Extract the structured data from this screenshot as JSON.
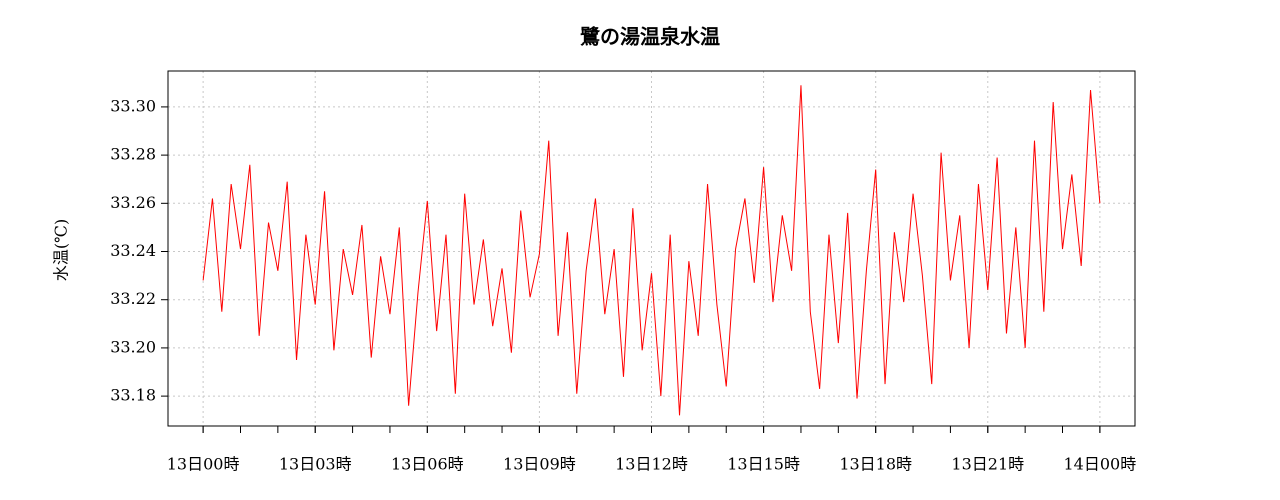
{
  "chart_data": {
    "type": "line",
    "title": "鷺の湯温泉水温",
    "y_label": "水温(℃)",
    "x": [
      0,
      0.25,
      0.5,
      0.75,
      1,
      1.25,
      1.5,
      1.75,
      2,
      2.25,
      2.5,
      2.75,
      3,
      3.25,
      3.5,
      3.75,
      4,
      4.25,
      4.5,
      4.75,
      5,
      5.25,
      5.5,
      5.75,
      6,
      6.25,
      6.5,
      6.75,
      7,
      7.25,
      7.5,
      7.75,
      8,
      8.25,
      8.5,
      8.75,
      9,
      9.25,
      9.5,
      9.75,
      10,
      10.25,
      10.5,
      10.75,
      11,
      11.25,
      11.5,
      11.75,
      12,
      12.25,
      12.5,
      12.75,
      13,
      13.25,
      13.5,
      13.75,
      14,
      14.25,
      14.5,
      14.75,
      15,
      15.25,
      15.5,
      15.75,
      16,
      16.25,
      16.5,
      16.75,
      17,
      17.25,
      17.5,
      17.75,
      18,
      18.25,
      18.5,
      18.75,
      19,
      19.25,
      19.5,
      19.75,
      20,
      20.25,
      20.5,
      20.75,
      21,
      21.25,
      21.5,
      21.75,
      22,
      22.25,
      22.5,
      22.75,
      23,
      23.25,
      23.5,
      23.75,
      24
    ],
    "series": [
      {
        "name": "水温",
        "color": "#ff0000",
        "values": [
          33.228,
          33.262,
          33.215,
          33.268,
          33.241,
          33.276,
          33.205,
          33.252,
          33.232,
          33.269,
          33.195,
          33.247,
          33.218,
          33.265,
          33.199,
          33.241,
          33.222,
          33.251,
          33.196,
          33.238,
          33.214,
          33.25,
          33.176,
          33.223,
          33.261,
          33.207,
          33.247,
          33.181,
          33.264,
          33.218,
          33.245,
          33.209,
          33.233,
          33.198,
          33.257,
          33.221,
          33.239,
          33.286,
          33.205,
          33.248,
          33.181,
          33.232,
          33.262,
          33.214,
          33.241,
          33.188,
          33.258,
          33.199,
          33.231,
          33.18,
          33.247,
          33.172,
          33.236,
          33.205,
          33.268,
          33.218,
          33.184,
          33.241,
          33.262,
          33.227,
          33.275,
          33.219,
          33.255,
          33.232,
          33.309,
          33.215,
          33.183,
          33.247,
          33.202,
          33.256,
          33.179,
          33.232,
          33.274,
          33.185,
          33.248,
          33.219,
          33.264,
          33.23,
          33.185,
          33.281,
          33.228,
          33.255,
          33.2,
          33.268,
          33.224,
          33.279,
          33.206,
          33.25,
          33.2,
          33.286,
          33.215,
          33.302,
          33.241,
          33.272,
          33.234,
          33.307,
          33.26
        ]
      }
    ],
    "xlim": [
      -0.94,
      24.94
    ],
    "xticks": [
      {
        "value": 0,
        "label": "13日00時"
      },
      {
        "value": 3,
        "label": "13日03時"
      },
      {
        "value": 6,
        "label": "13日06時"
      },
      {
        "value": 9,
        "label": "13日09時"
      },
      {
        "value": 12,
        "label": "13日12時"
      },
      {
        "value": 15,
        "label": "13日15時"
      },
      {
        "value": 18,
        "label": "13日18時"
      },
      {
        "value": 21,
        "label": "13日21時"
      },
      {
        "value": 24,
        "label": "14日00時"
      }
    ],
    "xminor_ticks": [
      0,
      1,
      2,
      3,
      4,
      5,
      6,
      7,
      8,
      9,
      10,
      11,
      12,
      13,
      14,
      15,
      16,
      17,
      18,
      19,
      20,
      21,
      22,
      23,
      24
    ],
    "ylim": [
      33.1676,
      33.3149
    ],
    "yticks": [
      {
        "value": 33.18,
        "label": "33.18"
      },
      {
        "value": 33.2,
        "label": "33.20"
      },
      {
        "value": 33.22,
        "label": "33.22"
      },
      {
        "value": 33.24,
        "label": "33.24"
      },
      {
        "value": 33.26,
        "label": "33.26"
      },
      {
        "value": 33.28,
        "label": "33.28"
      },
      {
        "value": 33.3,
        "label": "33.30"
      }
    ],
    "grid": true
  }
}
